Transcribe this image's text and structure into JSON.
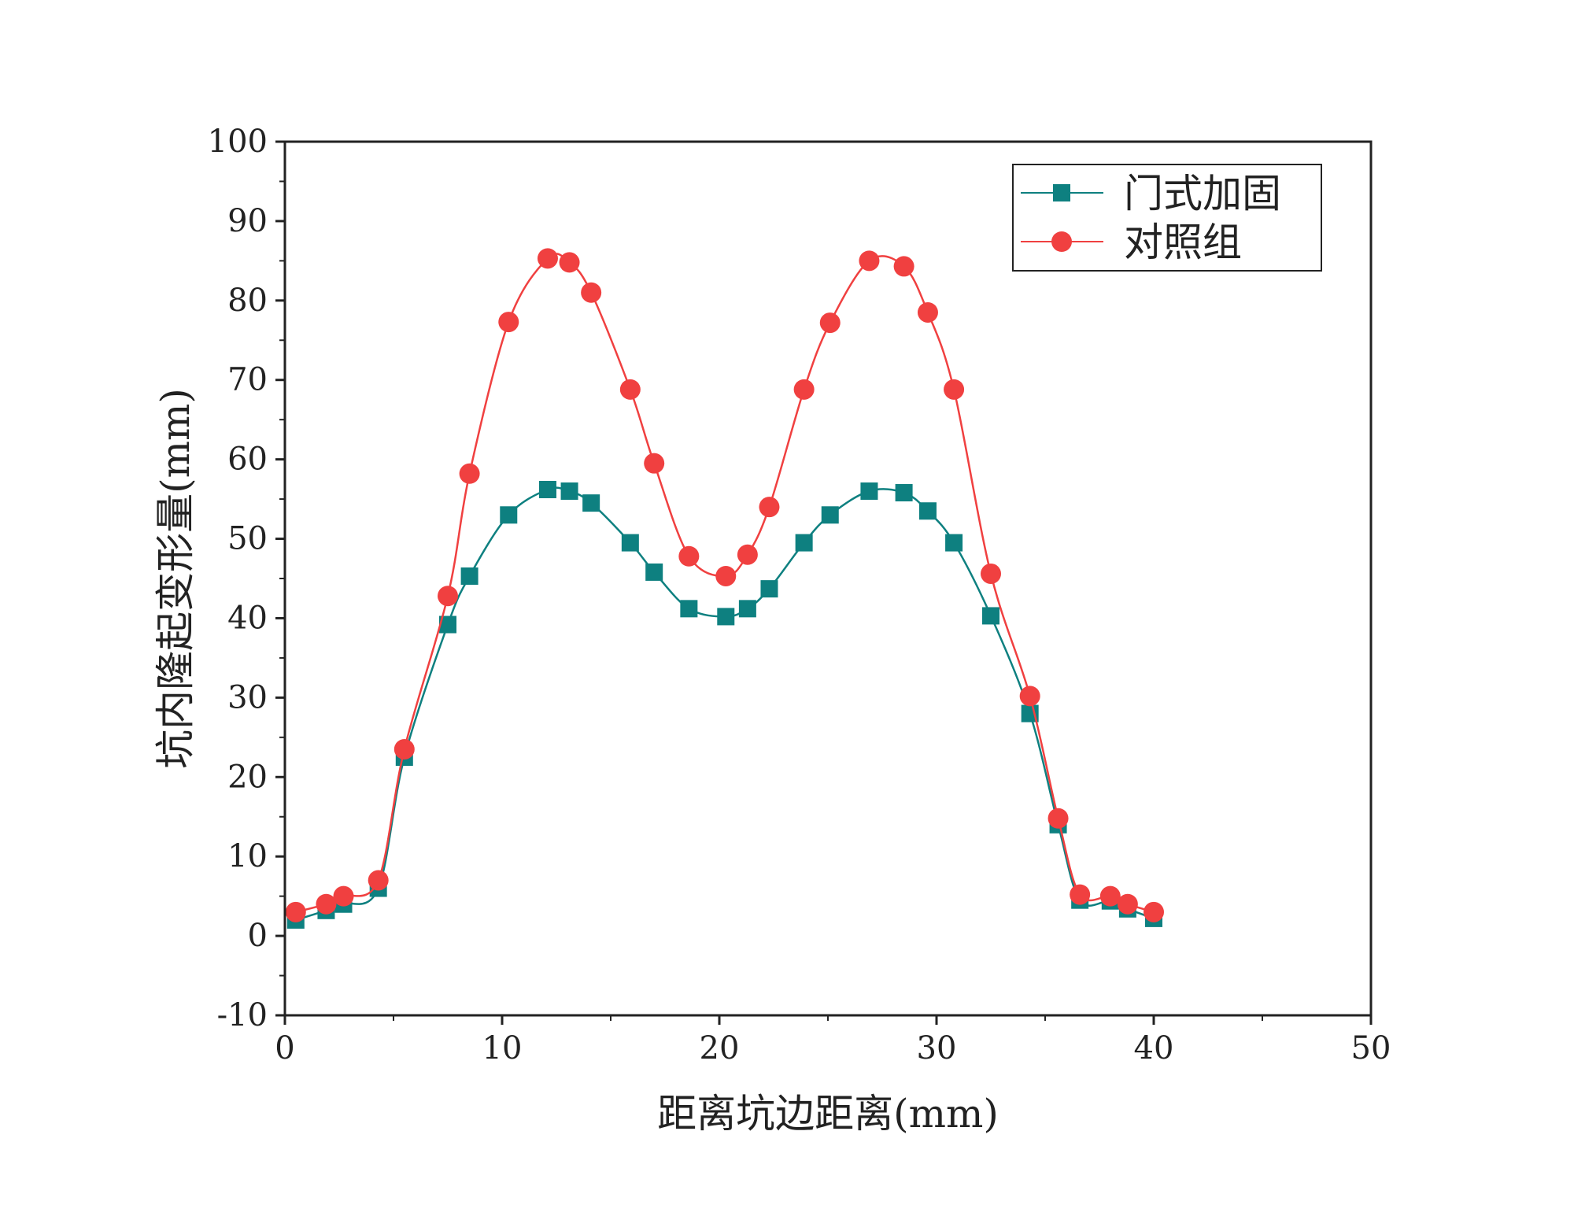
{
  "chart_data": {
    "type": "line",
    "title": "",
    "xlabel": "距离坑边距离(mm)",
    "ylabel": "坑内隆起变形量(mm)",
    "xlim": [
      0,
      50
    ],
    "ylim": [
      -10,
      100
    ],
    "xticks": [
      0,
      10,
      20,
      30,
      40,
      50
    ],
    "yticks": [
      -10,
      0,
      10,
      20,
      30,
      40,
      50,
      60,
      70,
      80,
      90,
      100
    ],
    "xtick_labels": [
      "0",
      "10",
      "20",
      "30",
      "40",
      "50"
    ],
    "ytick_labels": [
      "-10",
      "0",
      "10",
      "20",
      "30",
      "40",
      "50",
      "60",
      "70",
      "80",
      "90",
      "100"
    ],
    "grid": false,
    "legend_position": "top-right",
    "series": [
      {
        "name": "门式加固",
        "color": "#0e8080",
        "marker": "square",
        "x": [
          0.5,
          1.9,
          2.7,
          4.3,
          5.5,
          7.5,
          8.5,
          10.3,
          12.1,
          13.1,
          14.1,
          15.9,
          17.0,
          18.6,
          20.3,
          21.3,
          22.3,
          23.9,
          25.1,
          26.9,
          28.5,
          29.6,
          30.8,
          32.5,
          34.3,
          35.6,
          36.6,
          38.0,
          38.8,
          40.0
        ],
        "values": [
          2.0,
          3.2,
          4.0,
          6.0,
          22.5,
          39.2,
          45.3,
          53.0,
          56.2,
          56.0,
          54.5,
          49.5,
          45.8,
          41.2,
          40.2,
          41.2,
          43.7,
          49.5,
          53.0,
          56.0,
          55.8,
          53.5,
          49.5,
          40.3,
          28.0,
          14.0,
          4.5,
          4.4,
          3.4,
          2.2
        ]
      },
      {
        "name": "对照组",
        "color": "#f04040",
        "marker": "circle",
        "x": [
          0.5,
          1.9,
          2.7,
          4.3,
          5.5,
          7.5,
          8.5,
          10.3,
          12.1,
          13.1,
          14.1,
          15.9,
          17.0,
          18.6,
          20.3,
          21.3,
          22.3,
          23.9,
          25.1,
          26.9,
          28.5,
          29.6,
          30.8,
          32.5,
          34.3,
          35.6,
          36.6,
          38.0,
          38.8,
          40.0
        ],
        "values": [
          3.0,
          4.0,
          5.0,
          7.0,
          23.5,
          42.8,
          58.2,
          77.3,
          85.3,
          84.8,
          81.0,
          68.8,
          59.5,
          47.8,
          45.3,
          48.0,
          54.0,
          68.8,
          77.2,
          85.0,
          84.3,
          78.5,
          68.8,
          45.6,
          30.2,
          14.8,
          5.2,
          5.0,
          4.0,
          3.0
        ]
      }
    ]
  }
}
